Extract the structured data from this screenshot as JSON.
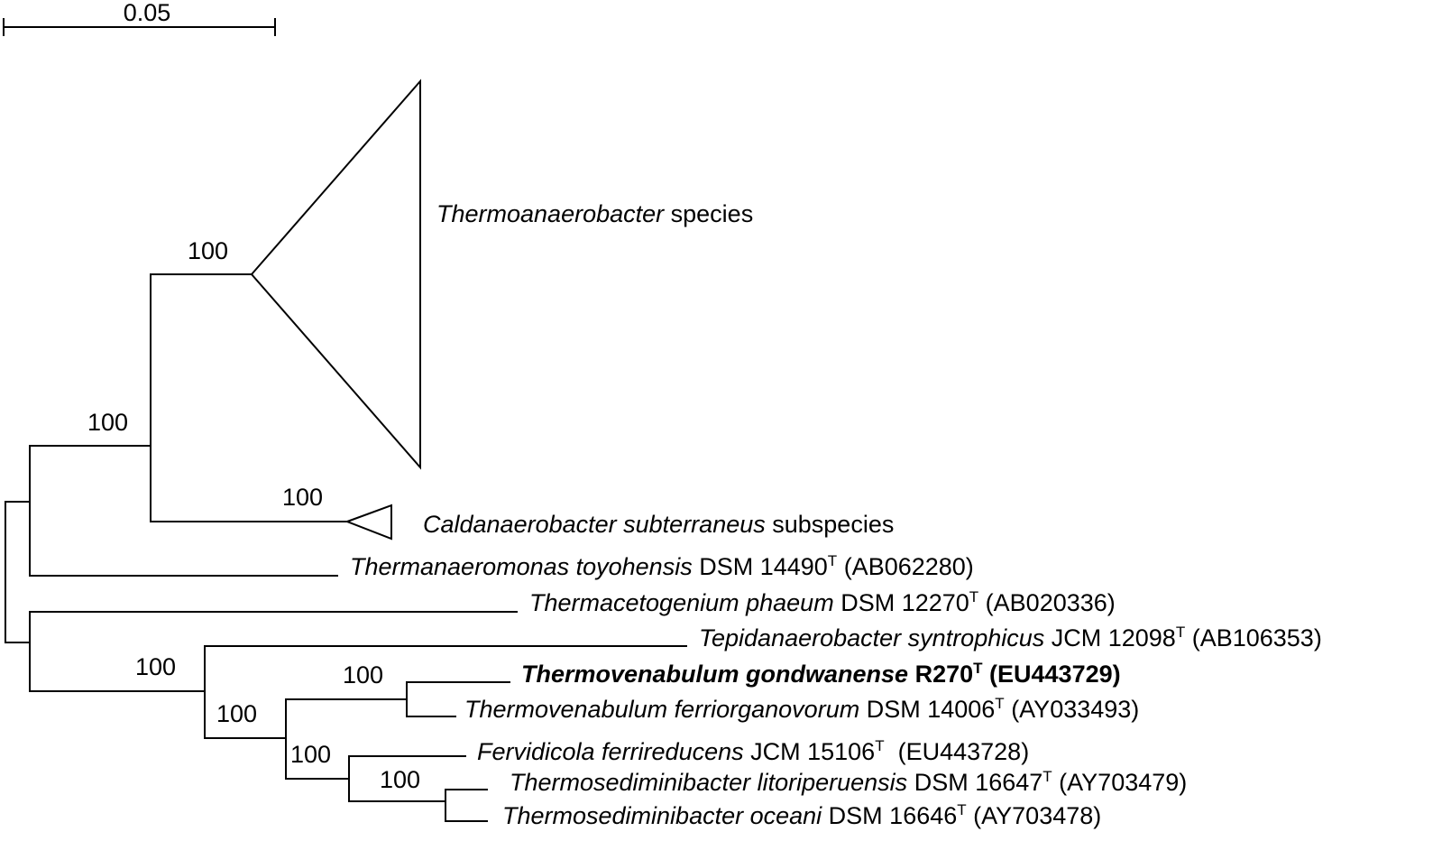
{
  "scale_bar": {
    "label": "0.05"
  },
  "bootstrap": {
    "thermoanaerobacter_clade": "100",
    "upper_clade": "100",
    "caldanaerobacter_clade": "100",
    "tepidanaerobacter_group": "100",
    "thermovenabulum_group": "100",
    "thermovenabulum_pair": "100",
    "fervidicola_group": "100",
    "thermosediminibacter_pair": "100"
  },
  "taxa": {
    "thermoanaerobacter": {
      "genus": "Thermoanaerobacter",
      "rest": " species"
    },
    "caldanaerobacter": {
      "genus": "Caldanaerobacter subterraneus",
      "rest": " subspecies"
    },
    "thermanaeromonas": {
      "name": "Thermanaeromonas toyohensis",
      "strain": " DSM 14490",
      "type_mark": "T",
      "accession": " (AB062280)"
    },
    "thermacetogenium": {
      "name": "Thermacetogenium phaeum",
      "strain": " DSM 12270",
      "type_mark": "T",
      "accession": " (AB020336)"
    },
    "tepidanaerobacter": {
      "name": "Tepidanaerobacter syntrophicus",
      "strain": " JCM 12098",
      "type_mark": "T",
      "accession": " (AB106353)"
    },
    "thermovenabulum_gondwanense": {
      "name": "Thermovenabulum gondwanense",
      "strain": " R270",
      "type_mark": "T",
      "accession": " (EU443729)"
    },
    "thermovenabulum_ferriorganovorum": {
      "name": "Thermovenabulum ferriorganovorum",
      "strain": " DSM 14006",
      "type_mark": "T",
      "accession": " (AY033493)"
    },
    "fervidicola": {
      "name": "Fervidicola ferrireducens",
      "strain": " JCM 15106",
      "type_mark": "T",
      "accession": "  (EU443728)"
    },
    "thermosediminibacter_litoriperuensis": {
      "name": "Thermosediminibacter litoriperuensis",
      "strain": " DSM 16647",
      "type_mark": "T",
      "accession": " (AY703479)"
    },
    "thermosediminibacter_oceani": {
      "name": "Thermosediminibacter oceani",
      "strain": " DSM 16646",
      "type_mark": "T",
      "accession": " (AY703478)"
    }
  }
}
